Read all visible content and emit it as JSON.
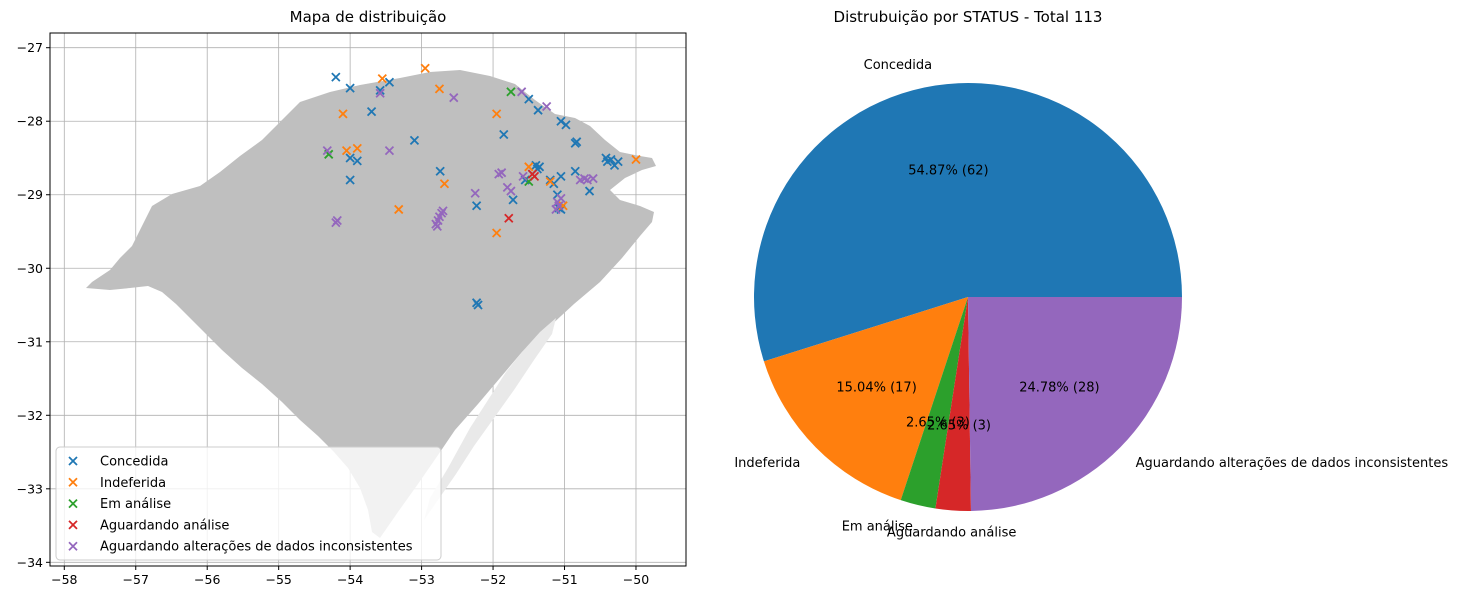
{
  "chart_data": [
    {
      "type": "scatter",
      "title": "Mapa de distribuição",
      "xlabel": "",
      "ylabel": "",
      "xlim": [
        -58.2,
        -49.3
      ],
      "ylim": [
        -34.05,
        -26.8
      ],
      "xticks": [
        "−58",
        "−57",
        "−56",
        "−55",
        "−54",
        "−53",
        "−52",
        "−51",
        "−50"
      ],
      "yticks": [
        "−27",
        "−28",
        "−29",
        "−30",
        "−31",
        "−32",
        "−33",
        "−34"
      ],
      "grid": true,
      "legend_position": "lower-left",
      "marker": "x",
      "background_shape_color": "#bfbfbf",
      "series": [
        {
          "name": "Concedida",
          "color": "#1f77b4",
          "points": [
            [
              -54.2,
              -27.4
            ],
            [
              -54.0,
              -27.55
            ],
            [
              -53.45,
              -27.47
            ],
            [
              -53.7,
              -27.87
            ],
            [
              -53.58,
              -27.58
            ],
            [
              -54.0,
              -28.5
            ],
            [
              -53.9,
              -28.54
            ],
            [
              -54.0,
              -28.8
            ],
            [
              -53.1,
              -28.26
            ],
            [
              -52.74,
              -28.68
            ],
            [
              -51.85,
              -28.18
            ],
            [
              -52.23,
              -29.15
            ],
            [
              -51.72,
              -29.07
            ],
            [
              -51.5,
              -27.7
            ],
            [
              -51.37,
              -27.85
            ],
            [
              -51.05,
              -28.0
            ],
            [
              -50.98,
              -28.05
            ],
            [
              -50.85,
              -28.3
            ],
            [
              -50.83,
              -28.28
            ],
            [
              -50.85,
              -28.68
            ],
            [
              -51.4,
              -28.6
            ],
            [
              -51.45,
              -28.72
            ],
            [
              -51.38,
              -28.65
            ],
            [
              -51.35,
              -28.62
            ],
            [
              -51.55,
              -28.8
            ],
            [
              -51.1,
              -29.0
            ],
            [
              -51.05,
              -28.75
            ],
            [
              -51.15,
              -28.85
            ],
            [
              -51.2,
              -28.8
            ],
            [
              -51.08,
              -29.18
            ],
            [
              -51.05,
              -29.2
            ],
            [
              -50.65,
              -28.95
            ],
            [
              -50.4,
              -28.55
            ],
            [
              -50.35,
              -28.52
            ],
            [
              -50.3,
              -28.6
            ],
            [
              -50.25,
              -28.55
            ],
            [
              -50.42,
              -28.5
            ],
            [
              -52.23,
              -30.47
            ],
            [
              -52.21,
              -30.5
            ]
          ]
        },
        {
          "name": "Indeferida",
          "color": "#ff7f0e",
          "points": [
            [
              -52.95,
              -27.28
            ],
            [
              -53.55,
              -27.42
            ],
            [
              -54.1,
              -27.9
            ],
            [
              -52.75,
              -27.56
            ],
            [
              -54.05,
              -28.4
            ],
            [
              -53.9,
              -28.37
            ],
            [
              -52.68,
              -28.85
            ],
            [
              -53.32,
              -29.2
            ],
            [
              -51.95,
              -27.9
            ],
            [
              -51.5,
              -28.62
            ],
            [
              -51.2,
              -28.82
            ],
            [
              -51.02,
              -29.15
            ],
            [
              -51.95,
              -29.52
            ],
            [
              -50.0,
              -28.52
            ]
          ]
        },
        {
          "name": "Em análise",
          "color": "#2ca02c",
          "points": [
            [
              -51.75,
              -27.6
            ],
            [
              -54.3,
              -28.45
            ],
            [
              -51.5,
              -28.82
            ]
          ]
        },
        {
          "name": "Aguardando análise",
          "color": "#d62728",
          "points": [
            [
              -51.45,
              -28.72
            ],
            [
              -51.78,
              -29.32
            ],
            [
              -51.42,
              -28.75
            ]
          ]
        },
        {
          "name": "Aguardando alterações de dados inconsistentes",
          "color": "#9467bd",
          "points": [
            [
              -53.58,
              -27.62
            ],
            [
              -52.55,
              -27.68
            ],
            [
              -51.6,
              -27.6
            ],
            [
              -51.25,
              -27.8
            ],
            [
              -54.32,
              -28.4
            ],
            [
              -53.45,
              -28.4
            ],
            [
              -51.88,
              -28.7
            ],
            [
              -51.8,
              -28.9
            ],
            [
              -51.75,
              -28.95
            ],
            [
              -52.25,
              -28.98
            ],
            [
              -54.18,
              -29.35
            ],
            [
              -54.2,
              -29.38
            ],
            [
              -52.8,
              -29.4
            ],
            [
              -52.77,
              -29.35
            ],
            [
              -52.75,
              -29.3
            ],
            [
              -52.72,
              -29.25
            ],
            [
              -52.7,
              -29.22
            ],
            [
              -52.78,
              -29.43
            ],
            [
              -51.1,
              -29.1
            ],
            [
              -51.05,
              -29.05
            ],
            [
              -50.72,
              -28.78
            ],
            [
              -50.68,
              -28.8
            ],
            [
              -50.6,
              -28.78
            ],
            [
              -51.08,
              -29.15
            ],
            [
              -51.58,
              -28.75
            ],
            [
              -51.12,
              -29.2
            ],
            [
              -50.78,
              -28.8
            ],
            [
              -51.92,
              -28.72
            ]
          ]
        }
      ]
    },
    {
      "type": "pie",
      "title": "Distrubuição por STATUS - Total 113",
      "slices": [
        {
          "label": "Concedida",
          "value": 62,
          "pct_label": "54.87%  (62)",
          "color": "#1f77b4"
        },
        {
          "label": "Indeferida",
          "value": 17,
          "pct_label": "15.04%  (17)",
          "color": "#ff7f0e"
        },
        {
          "label": "Em análise",
          "value": 3,
          "pct_label": "2.65%  (3)",
          "color": "#2ca02c"
        },
        {
          "label": "Aguardando análise",
          "value": 3,
          "pct_label": "2.65%  (3)",
          "color": "#d62728"
        },
        {
          "label": "Aguardando alterações de dados inconsistentes",
          "value": 28,
          "pct_label": "24.78%  (28)",
          "color": "#9467bd"
        }
      ]
    }
  ]
}
